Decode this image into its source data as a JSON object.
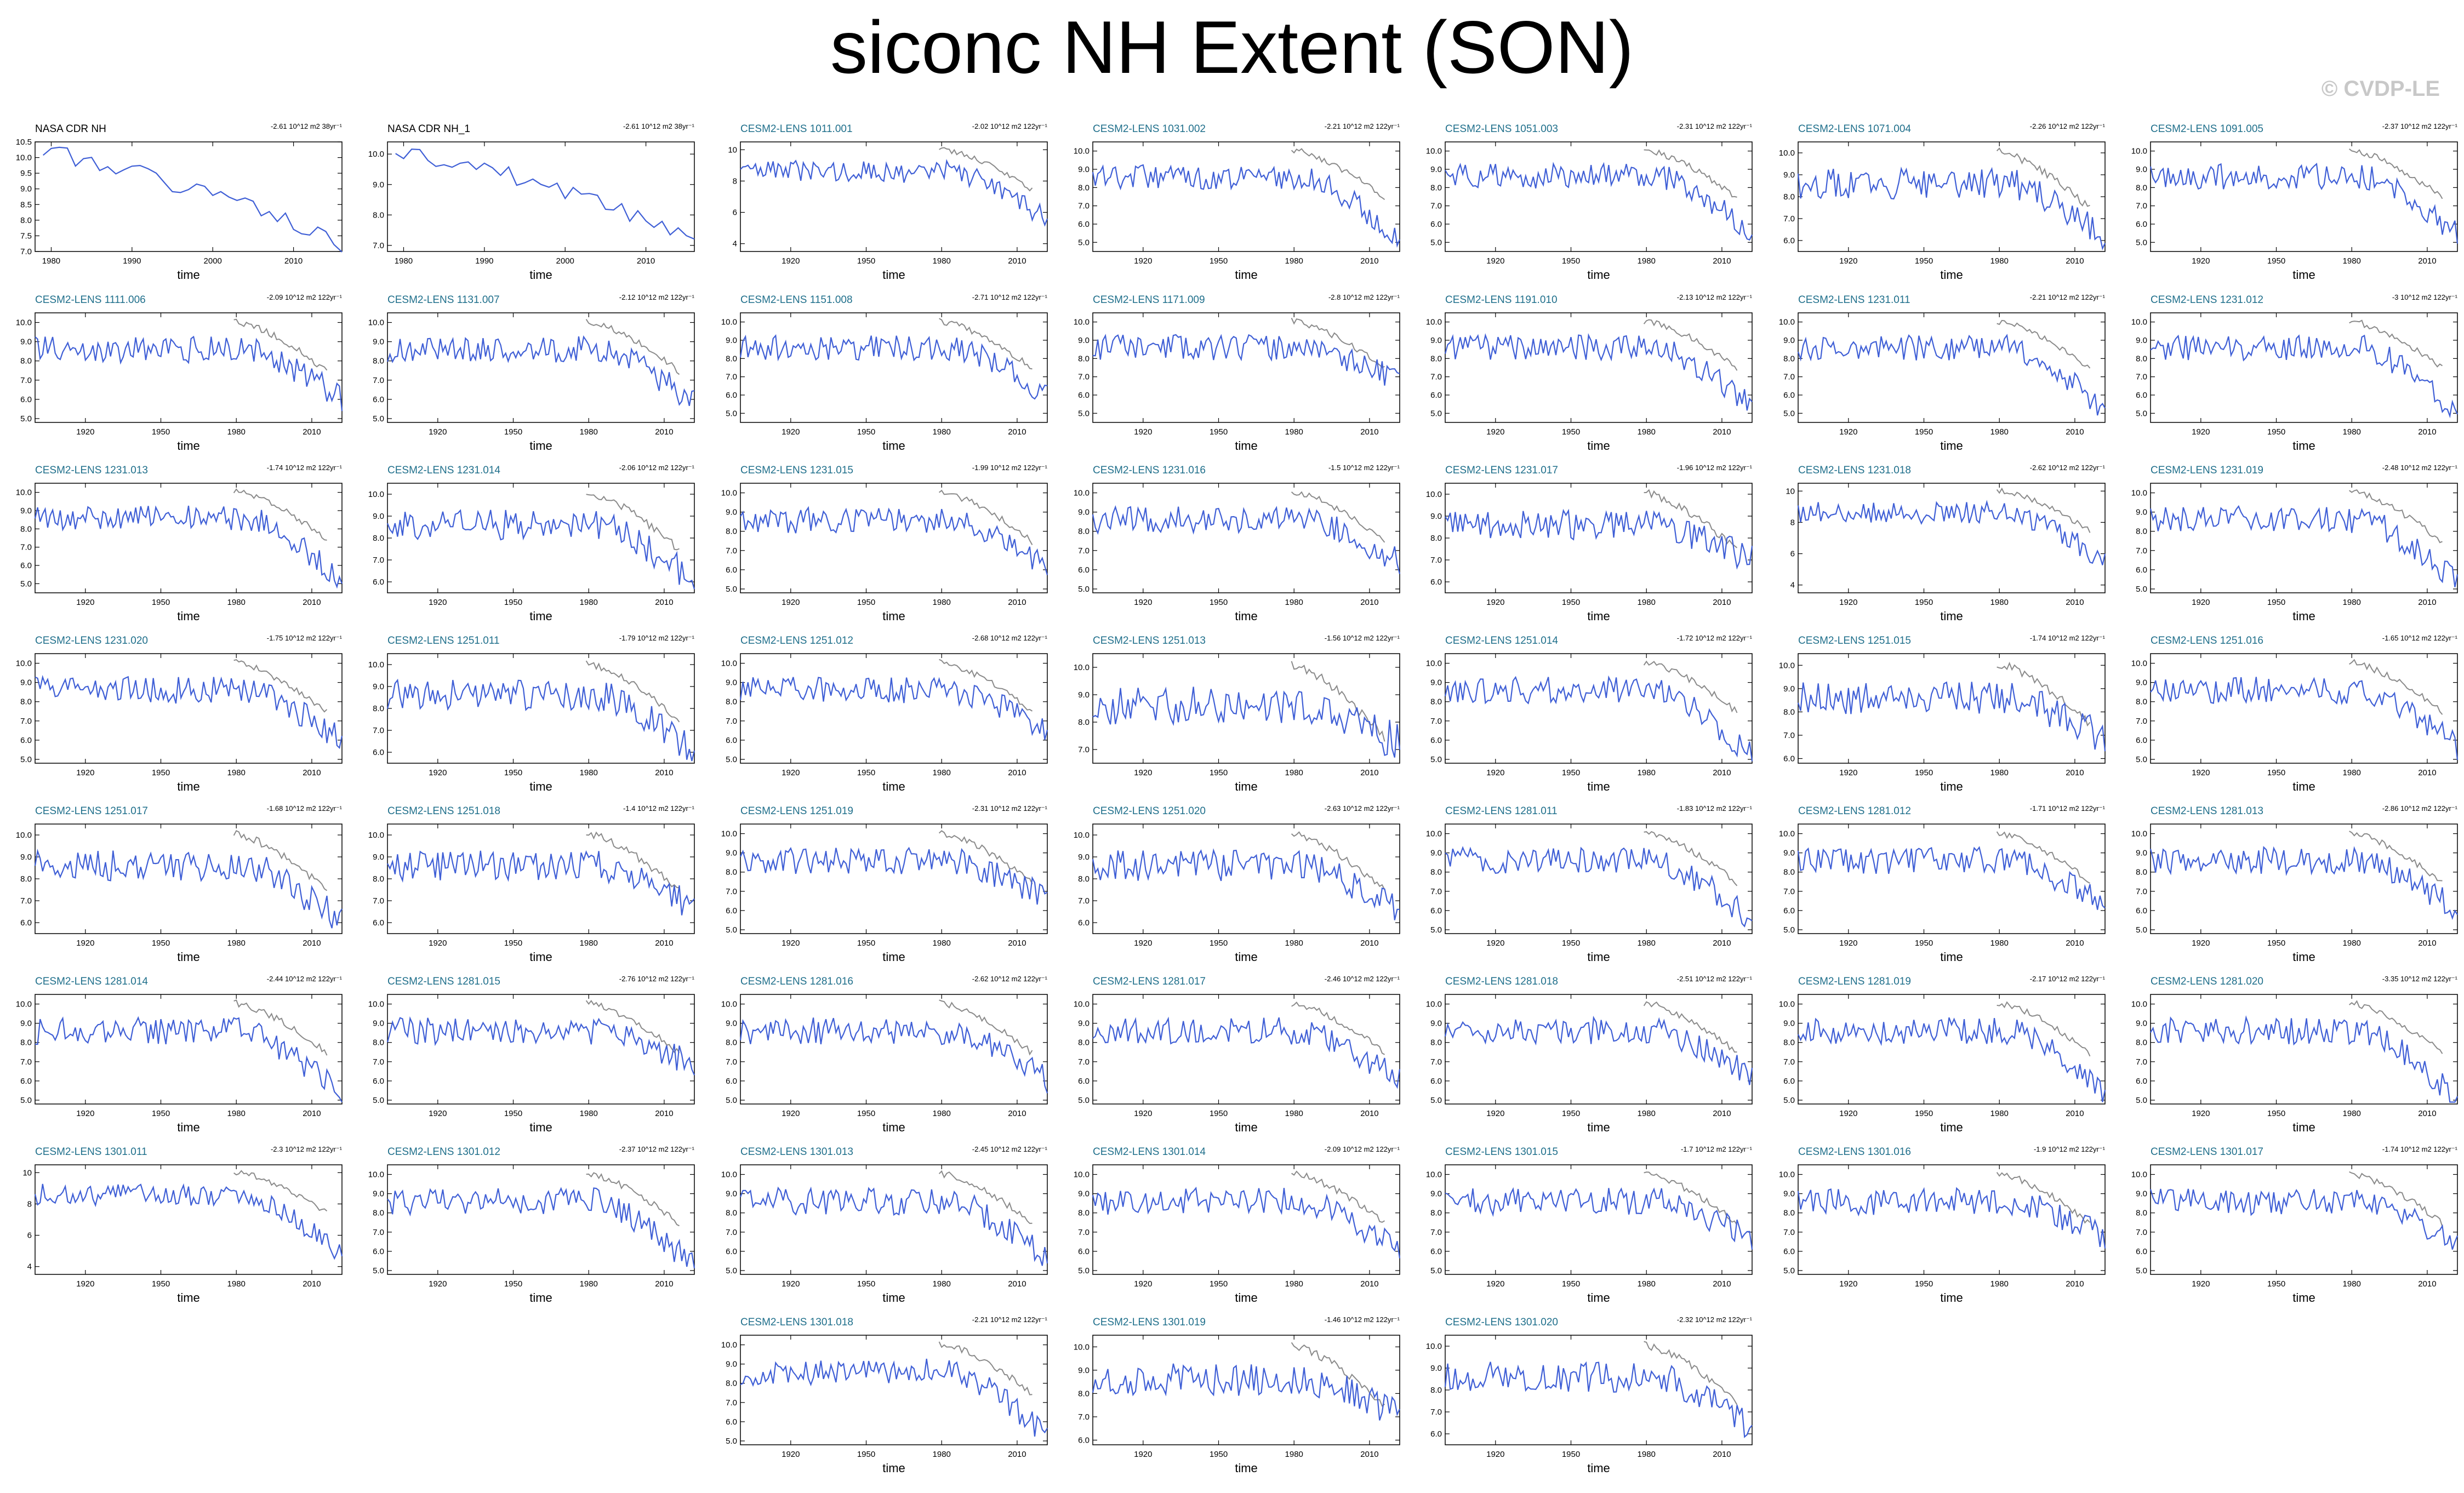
{
  "title": "siconc NH Extent (SON)",
  "watermark": "© CVDP-LE",
  "chart_data": {
    "type": "line",
    "title": "siconc NH Extent (SON)",
    "xlabel": "time",
    "ylabel": "",
    "colors": {
      "model": "#3f5fd6",
      "obs_overlay": "#8a8a8a",
      "obs": "#3f5fd6",
      "model_title": "#1f6f8b",
      "obs_title": "#000000"
    },
    "panels": [
      {
        "title": "NASA CDR NH",
        "trend": "-2.61 10^12 m2 38yr⁻¹",
        "kind": "obs",
        "xlim": [
          1978,
          2016
        ],
        "xticks": [
          1980,
          1990,
          2000,
          2010
        ],
        "ylim": [
          7.0,
          10.5
        ],
        "yticks": [
          "7.0",
          "7.5",
          "8.0",
          "8.5",
          "9.0",
          "9.5",
          "10.0",
          "10.5"
        ],
        "seed": 1,
        "end": 7.2
      },
      {
        "title": "NASA CDR NH_1",
        "trend": "-2.61 10^12 m2 38yr⁻¹",
        "kind": "obs",
        "xlim": [
          1978,
          2016
        ],
        "xticks": [
          1980,
          1990,
          2000,
          2010
        ],
        "ylim": [
          6.8,
          10.4
        ],
        "yticks": [
          "7.0",
          "8.0",
          "9.0",
          "10.0"
        ],
        "seed": 2,
        "end": 7.2
      },
      {
        "title": "CESM2-LENS 1011.001",
        "trend": "-2.02 10^12 m2 122yr⁻¹",
        "kind": "model",
        "ylim": [
          3.5,
          10.5
        ],
        "yticks": [
          "4",
          "6",
          "8",
          "10"
        ],
        "seed": 3,
        "end": 5.5
      },
      {
        "title": "CESM2-LENS 1031.002",
        "trend": "-2.21 10^12 m2 122yr⁻¹",
        "kind": "model",
        "ylim": [
          4.5,
          10.5
        ],
        "yticks": [
          "5.0",
          "6.0",
          "7.0",
          "8.0",
          "9.0",
          "10.0"
        ],
        "seed": 4,
        "end": 5.2
      },
      {
        "title": "CESM2-LENS 1051.003",
        "trend": "-2.31 10^12 m2 122yr⁻¹",
        "kind": "model",
        "ylim": [
          4.5,
          10.5
        ],
        "yticks": [
          "5.0",
          "6.0",
          "7.0",
          "8.0",
          "9.0",
          "10.0"
        ],
        "seed": 5,
        "end": 5.6
      },
      {
        "title": "CESM2-LENS 1071.004",
        "trend": "-2.26 10^12 m2 122yr⁻¹",
        "kind": "model",
        "ylim": [
          5.5,
          10.5
        ],
        "yticks": [
          "6.0",
          "7.0",
          "8.0",
          "9.0",
          "10.0"
        ],
        "seed": 6,
        "end": 6.2
      },
      {
        "title": "CESM2-LENS 1091.005",
        "trend": "-2.37 10^12 m2 122yr⁻¹",
        "kind": "model",
        "ylim": [
          4.5,
          10.5
        ],
        "yticks": [
          "5.0",
          "6.0",
          "7.0",
          "8.0",
          "9.0",
          "10.0"
        ],
        "seed": 7,
        "end": 5.4
      },
      {
        "title": "CESM2-LENS 1111.006",
        "trend": "-2.09 10^12 m2 122yr⁻¹",
        "kind": "model",
        "ylim": [
          4.8,
          10.5
        ],
        "yticks": [
          "5.0",
          "6.0",
          "7.0",
          "8.0",
          "9.0",
          "10.0"
        ],
        "seed": 8,
        "end": 6.0
      },
      {
        "title": "CESM2-LENS 1131.007",
        "trend": "-2.12 10^12 m2 122yr⁻¹",
        "kind": "model",
        "ylim": [
          4.8,
          10.5
        ],
        "yticks": [
          "5.0",
          "6.0",
          "7.0",
          "8.0",
          "9.0",
          "10.0"
        ],
        "seed": 9,
        "end": 5.8
      },
      {
        "title": "CESM2-LENS 1151.008",
        "trend": "-2.71 10^12 m2 122yr⁻¹",
        "kind": "model",
        "ylim": [
          4.5,
          10.5
        ],
        "yticks": [
          "5.0",
          "6.0",
          "7.0",
          "8.0",
          "9.0",
          "10.0"
        ],
        "seed": 10,
        "end": 6.0
      },
      {
        "title": "CESM2-LENS 1171.009",
        "trend": "-2.8 10^12 m2 122yr⁻¹",
        "kind": "model",
        "ylim": [
          4.5,
          10.5
        ],
        "yticks": [
          "5.0",
          "6.0",
          "7.0",
          "8.0",
          "9.0",
          "10.0"
        ],
        "seed": 11,
        "end": 6.8
      },
      {
        "title": "CESM2-LENS 1191.010",
        "trend": "-2.13 10^12 m2 122yr⁻¹",
        "kind": "model",
        "ylim": [
          4.5,
          10.5
        ],
        "yticks": [
          "5.0",
          "6.0",
          "7.0",
          "8.0",
          "9.0",
          "10.0"
        ],
        "seed": 12,
        "end": 5.4
      },
      {
        "title": "CESM2-LENS 1231.011",
        "trend": "-2.21 10^12 m2 122yr⁻¹",
        "kind": "model",
        "ylim": [
          4.5,
          10.5
        ],
        "yticks": [
          "5.0",
          "6.0",
          "7.0",
          "8.0",
          "9.0",
          "10.0"
        ],
        "seed": 13,
        "end": 5.2
      },
      {
        "title": "CESM2-LENS 1231.012",
        "trend": "-3 10^12 m2 122yr⁻¹",
        "kind": "model",
        "ylim": [
          4.5,
          10.5
        ],
        "yticks": [
          "5.0",
          "6.0",
          "7.0",
          "8.0",
          "9.0",
          "10.0"
        ],
        "seed": 14,
        "end": 5.0
      },
      {
        "title": "CESM2-LENS 1231.013",
        "trend": "-1.74 10^12 m2 122yr⁻¹",
        "kind": "model",
        "ylim": [
          4.5,
          10.5
        ],
        "yticks": [
          "5.0",
          "6.0",
          "7.0",
          "8.0",
          "9.0",
          "10.0"
        ],
        "seed": 15,
        "end": 5.2
      },
      {
        "title": "CESM2-LENS 1231.014",
        "trend": "-2.06 10^12 m2 122yr⁻¹",
        "kind": "model",
        "ylim": [
          5.5,
          10.5
        ],
        "yticks": [
          "6.0",
          "7.0",
          "8.0",
          "9.0",
          "10.0"
        ],
        "seed": 16,
        "end": 6.0
      },
      {
        "title": "CESM2-LENS 1231.015",
        "trend": "-1.99 10^12 m2 122yr⁻¹",
        "kind": "model",
        "ylim": [
          4.8,
          10.5
        ],
        "yticks": [
          "5.0",
          "6.0",
          "7.0",
          "8.0",
          "9.0",
          "10.0"
        ],
        "seed": 17,
        "end": 6.2
      },
      {
        "title": "CESM2-LENS 1231.016",
        "trend": "-1.5 10^12 m2 122yr⁻¹",
        "kind": "model",
        "ylim": [
          4.8,
          10.5
        ],
        "yticks": [
          "5.0",
          "6.0",
          "7.0",
          "8.0",
          "9.0",
          "10.0"
        ],
        "seed": 18,
        "end": 6.4
      },
      {
        "title": "CESM2-LENS 1231.017",
        "trend": "-1.96 10^12 m2 122yr⁻¹",
        "kind": "model",
        "ylim": [
          5.5,
          10.5
        ],
        "yticks": [
          "6.0",
          "7.0",
          "8.0",
          "9.0",
          "10.0"
        ],
        "seed": 19,
        "end": 7.0
      },
      {
        "title": "CESM2-LENS 1231.018",
        "trend": "-2.62 10^12 m2 122yr⁻¹",
        "kind": "model",
        "ylim": [
          3.5,
          10.5
        ],
        "yticks": [
          "4",
          "6",
          "8",
          "10"
        ],
        "seed": 20,
        "end": 5.5
      },
      {
        "title": "CESM2-LENS 1231.019",
        "trend": "-2.48 10^12 m2 122yr⁻¹",
        "kind": "model",
        "ylim": [
          4.8,
          10.5
        ],
        "yticks": [
          "5.0",
          "6.0",
          "7.0",
          "8.0",
          "9.0",
          "10.0"
        ],
        "seed": 21,
        "end": 5.4
      },
      {
        "title": "CESM2-LENS 1231.020",
        "trend": "-1.75 10^12 m2 122yr⁻¹",
        "kind": "model",
        "ylim": [
          4.8,
          10.5
        ],
        "yticks": [
          "5.0",
          "6.0",
          "7.0",
          "8.0",
          "9.0",
          "10.0"
        ],
        "seed": 22,
        "end": 6.0
      },
      {
        "title": "CESM2-LENS 1251.011",
        "trend": "-1.79 10^12 m2 122yr⁻¹",
        "kind": "model",
        "ylim": [
          5.5,
          10.5
        ],
        "yticks": [
          "6.0",
          "7.0",
          "8.0",
          "9.0",
          "10.0"
        ],
        "seed": 23,
        "end": 6.0
      },
      {
        "title": "CESM2-LENS 1251.012",
        "trend": "-2.68 10^12 m2 122yr⁻¹",
        "kind": "model",
        "ylim": [
          4.8,
          10.5
        ],
        "yticks": [
          "5.0",
          "6.0",
          "7.0",
          "8.0",
          "9.0",
          "10.0"
        ],
        "seed": 24,
        "end": 6.6
      },
      {
        "title": "CESM2-LENS 1251.013",
        "trend": "-1.56 10^12 m2 122yr⁻¹",
        "kind": "model",
        "ylim": [
          6.5,
          10.5
        ],
        "yticks": [
          "7.0",
          "8.0",
          "9.0",
          "10.0"
        ],
        "seed": 25,
        "end": 7.2
      },
      {
        "title": "CESM2-LENS 1251.014",
        "trend": "-1.72 10^12 m2 122yr⁻¹",
        "kind": "model",
        "ylim": [
          4.8,
          10.5
        ],
        "yticks": [
          "5.0",
          "6.0",
          "7.0",
          "8.0",
          "9.0",
          "10.0"
        ],
        "seed": 26,
        "end": 5.2
      },
      {
        "title": "CESM2-LENS 1251.015",
        "trend": "-1.74 10^12 m2 122yr⁻¹",
        "kind": "model",
        "ylim": [
          5.8,
          10.5
        ],
        "yticks": [
          "6.0",
          "7.0",
          "8.0",
          "9.0",
          "10.0"
        ],
        "seed": 27,
        "end": 6.8
      },
      {
        "title": "CESM2-LENS 1251.016",
        "trend": "-1.65 10^12 m2 122yr⁻¹",
        "kind": "model",
        "ylim": [
          4.8,
          10.5
        ],
        "yticks": [
          "5.0",
          "6.0",
          "7.0",
          "8.0",
          "9.0",
          "10.0"
        ],
        "seed": 28,
        "end": 5.6
      },
      {
        "title": "CESM2-LENS 1251.017",
        "trend": "-1.68 10^12 m2 122yr⁻¹",
        "kind": "model",
        "ylim": [
          5.5,
          10.5
        ],
        "yticks": [
          "6.0",
          "7.0",
          "8.0",
          "9.0",
          "10.0"
        ],
        "seed": 29,
        "end": 6.0
      },
      {
        "title": "CESM2-LENS 1251.018",
        "trend": "-1.4 10^12 m2 122yr⁻¹",
        "kind": "model",
        "ylim": [
          5.5,
          10.5
        ],
        "yticks": [
          "6.0",
          "7.0",
          "8.0",
          "9.0",
          "10.0"
        ],
        "seed": 30,
        "end": 6.6
      },
      {
        "title": "CESM2-LENS 1251.019",
        "trend": "-2.31 10^12 m2 122yr⁻¹",
        "kind": "model",
        "ylim": [
          4.8,
          10.5
        ],
        "yticks": [
          "5.0",
          "6.0",
          "7.0",
          "8.0",
          "9.0",
          "10.0"
        ],
        "seed": 31,
        "end": 6.6
      },
      {
        "title": "CESM2-LENS 1251.020",
        "trend": "-2.63 10^12 m2 122yr⁻¹",
        "kind": "model",
        "ylim": [
          5.5,
          10.5
        ],
        "yticks": [
          "6.0",
          "7.0",
          "8.0",
          "9.0",
          "10.0"
        ],
        "seed": 32,
        "end": 6.4
      },
      {
        "title": "CESM2-LENS 1281.011",
        "trend": "-1.83 10^12 m2 122yr⁻¹",
        "kind": "model",
        "ylim": [
          4.8,
          10.5
        ],
        "yticks": [
          "5.0",
          "6.0",
          "7.0",
          "8.0",
          "9.0",
          "10.0"
        ],
        "seed": 33,
        "end": 5.4
      },
      {
        "title": "CESM2-LENS 1281.012",
        "trend": "-1.71 10^12 m2 122yr⁻¹",
        "kind": "model",
        "ylim": [
          4.8,
          10.5
        ],
        "yticks": [
          "5.0",
          "6.0",
          "7.0",
          "8.0",
          "9.0",
          "10.0"
        ],
        "seed": 34,
        "end": 6.2
      },
      {
        "title": "CESM2-LENS 1281.013",
        "trend": "-2.86 10^12 m2 122yr⁻¹",
        "kind": "model",
        "ylim": [
          4.8,
          10.5
        ],
        "yticks": [
          "5.0",
          "6.0",
          "7.0",
          "8.0",
          "9.0",
          "10.0"
        ],
        "seed": 35,
        "end": 6.0
      },
      {
        "title": "CESM2-LENS 1281.014",
        "trend": "-2.44 10^12 m2 122yr⁻¹",
        "kind": "model",
        "ylim": [
          4.8,
          10.5
        ],
        "yticks": [
          "5.0",
          "6.0",
          "7.0",
          "8.0",
          "9.0",
          "10.0"
        ],
        "seed": 36,
        "end": 5.2
      },
      {
        "title": "CESM2-LENS 1281.015",
        "trend": "-2.76 10^12 m2 122yr⁻¹",
        "kind": "model",
        "ylim": [
          4.8,
          10.5
        ],
        "yticks": [
          "5.0",
          "6.0",
          "7.0",
          "8.0",
          "9.0",
          "10.0"
        ],
        "seed": 37,
        "end": 6.8
      },
      {
        "title": "CESM2-LENS 1281.016",
        "trend": "-2.62 10^12 m2 122yr⁻¹",
        "kind": "model",
        "ylim": [
          4.8,
          10.5
        ],
        "yticks": [
          "5.0",
          "6.0",
          "7.0",
          "8.0",
          "9.0",
          "10.0"
        ],
        "seed": 38,
        "end": 6.0
      },
      {
        "title": "CESM2-LENS 1281.017",
        "trend": "-2.46 10^12 m2 122yr⁻¹",
        "kind": "model",
        "ylim": [
          4.8,
          10.5
        ],
        "yticks": [
          "5.0",
          "6.0",
          "7.0",
          "8.0",
          "9.0",
          "10.0"
        ],
        "seed": 39,
        "end": 6.0
      },
      {
        "title": "CESM2-LENS 1281.018",
        "trend": "-2.51 10^12 m2 122yr⁻¹",
        "kind": "model",
        "ylim": [
          4.8,
          10.5
        ],
        "yticks": [
          "5.0",
          "6.0",
          "7.0",
          "8.0",
          "9.0",
          "10.0"
        ],
        "seed": 40,
        "end": 6.2
      },
      {
        "title": "CESM2-LENS 1281.019",
        "trend": "-2.17 10^12 m2 122yr⁻¹",
        "kind": "model",
        "ylim": [
          4.8,
          10.5
        ],
        "yticks": [
          "5.0",
          "6.0",
          "7.0",
          "8.0",
          "9.0",
          "10.0"
        ],
        "seed": 41,
        "end": 5.2
      },
      {
        "title": "CESM2-LENS 1281.020",
        "trend": "-3.35 10^12 m2 122yr⁻¹",
        "kind": "model",
        "ylim": [
          4.8,
          10.5
        ],
        "yticks": [
          "5.0",
          "6.0",
          "7.0",
          "8.0",
          "9.0",
          "10.0"
        ],
        "seed": 42,
        "end": 5.0
      },
      {
        "title": "CESM2-LENS 1301.011",
        "trend": "-2.3 10^12 m2 122yr⁻¹",
        "kind": "model",
        "ylim": [
          3.5,
          10.5
        ],
        "yticks": [
          "4",
          "6",
          "8",
          "10"
        ],
        "seed": 43,
        "end": 4.6
      },
      {
        "title": "CESM2-LENS 1301.012",
        "trend": "-2.37 10^12 m2 122yr⁻¹",
        "kind": "model",
        "ylim": [
          4.8,
          10.5
        ],
        "yticks": [
          "5.0",
          "6.0",
          "7.0",
          "8.0",
          "9.0",
          "10.0"
        ],
        "seed": 44,
        "end": 5.2
      },
      {
        "title": "CESM2-LENS 1301.013",
        "trend": "-2.45 10^12 m2 122yr⁻¹",
        "kind": "model",
        "ylim": [
          4.8,
          10.5
        ],
        "yticks": [
          "5.0",
          "6.0",
          "7.0",
          "8.0",
          "9.0",
          "10.0"
        ],
        "seed": 45,
        "end": 5.6
      },
      {
        "title": "CESM2-LENS 1301.014",
        "trend": "-2.09 10^12 m2 122yr⁻¹",
        "kind": "model",
        "ylim": [
          4.8,
          10.5
        ],
        "yticks": [
          "5.0",
          "6.0",
          "7.0",
          "8.0",
          "9.0",
          "10.0"
        ],
        "seed": 46,
        "end": 6.0
      },
      {
        "title": "CESM2-LENS 1301.015",
        "trend": "-1.7 10^12 m2 122yr⁻¹",
        "kind": "model",
        "ylim": [
          4.8,
          10.5
        ],
        "yticks": [
          "5.0",
          "6.0",
          "7.0",
          "8.0",
          "9.0",
          "10.0"
        ],
        "seed": 47,
        "end": 6.6
      },
      {
        "title": "CESM2-LENS 1301.016",
        "trend": "-1.9 10^12 m2 122yr⁻¹",
        "kind": "model",
        "ylim": [
          4.8,
          10.5
        ],
        "yticks": [
          "5.0",
          "6.0",
          "7.0",
          "8.0",
          "9.0",
          "10.0"
        ],
        "seed": 48,
        "end": 6.8
      },
      {
        "title": "CESM2-LENS 1301.017",
        "trend": "-1.74 10^12 m2 122yr⁻¹",
        "kind": "model",
        "ylim": [
          4.8,
          10.5
        ],
        "yticks": [
          "5.0",
          "6.0",
          "7.0",
          "8.0",
          "9.0",
          "10.0"
        ],
        "seed": 49,
        "end": 6.2
      },
      {
        "title": "CESM2-LENS 1301.018",
        "trend": "-2.21 10^12 m2 122yr⁻¹",
        "kind": "model",
        "ylim": [
          4.8,
          10.5
        ],
        "yticks": [
          "5.0",
          "6.0",
          "7.0",
          "8.0",
          "9.0",
          "10.0"
        ],
        "seed": 50,
        "end": 5.2
      },
      {
        "title": "CESM2-LENS 1301.019",
        "trend": "-1.46 10^12 m2 122yr⁻¹",
        "kind": "model",
        "ylim": [
          5.8,
          10.5
        ],
        "yticks": [
          "6.0",
          "7.0",
          "8.0",
          "9.0",
          "10.0"
        ],
        "seed": 51,
        "end": 7.0
      },
      {
        "title": "CESM2-LENS 1301.020",
        "trend": "-2.32 10^12 m2 122yr⁻¹",
        "kind": "model",
        "ylim": [
          5.5,
          10.5
        ],
        "yticks": [
          "6.0",
          "7.0",
          "8.0",
          "9.0",
          "10.0"
        ],
        "seed": 52,
        "end": 6.2
      }
    ],
    "model_xlim": [
      1900,
      2022
    ],
    "model_xticks": [
      1920,
      1950,
      1980,
      2010
    ],
    "obs_overlay_xlim": [
      1979,
      2016
    ]
  }
}
